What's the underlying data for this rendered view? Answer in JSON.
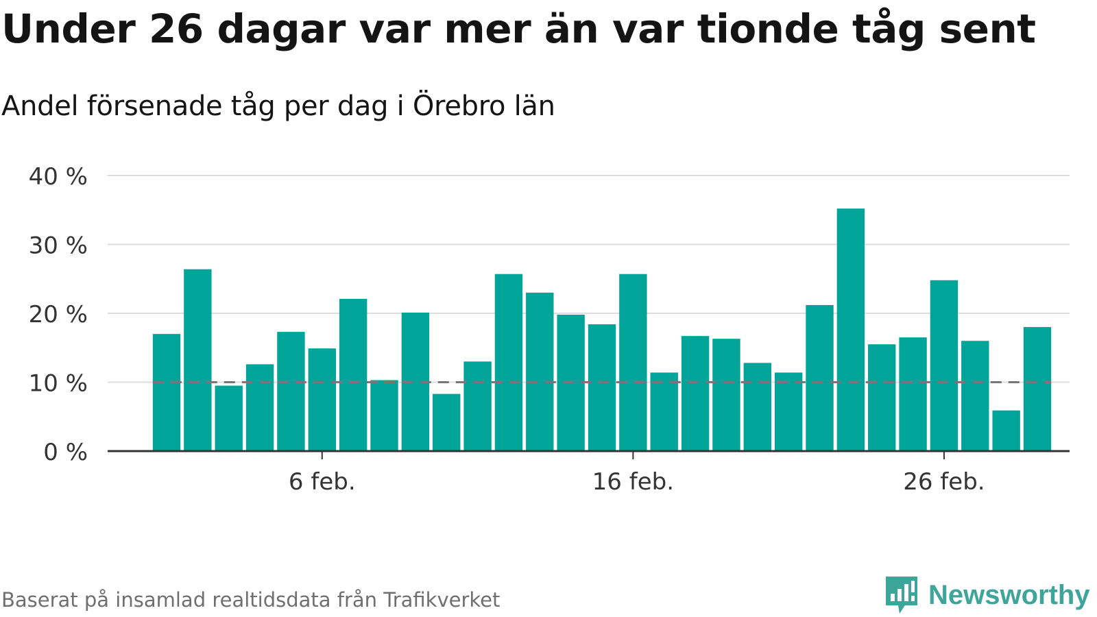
{
  "title": "Under 26 dagar var mer än var tionde tåg sent",
  "subtitle": "Andel försenade tåg per dag i Örebro län",
  "source": "Baserat på insamlad realtidsdata från Trafikverket",
  "logo": {
    "text": "Newsworthy",
    "icon": "newsworthy-logo-icon",
    "color": "#3ea59a"
  },
  "colors": {
    "bar": "#00a499",
    "grid": "#dddddd",
    "axis": "#333333",
    "reference": "#777777"
  },
  "chart_data": {
    "type": "bar",
    "x": [
      "1 feb.",
      "2 feb.",
      "3 feb.",
      "4 feb.",
      "5 feb.",
      "6 feb.",
      "7 feb.",
      "8 feb.",
      "9 feb.",
      "10 feb.",
      "11 feb.",
      "12 feb.",
      "13 feb.",
      "14 feb.",
      "15 feb.",
      "16 feb.",
      "17 feb.",
      "18 feb.",
      "19 feb.",
      "20 feb.",
      "21 feb.",
      "22 feb.",
      "23 feb.",
      "24 feb.",
      "25 feb.",
      "26 feb.",
      "27 feb.",
      "28 feb.",
      "29 feb."
    ],
    "values": [
      17.0,
      26.4,
      9.5,
      12.6,
      17.3,
      14.9,
      22.1,
      10.3,
      20.1,
      8.3,
      13.0,
      25.7,
      23.0,
      19.8,
      18.4,
      25.7,
      11.4,
      16.7,
      16.3,
      12.8,
      11.4,
      21.2,
      35.2,
      15.5,
      16.5,
      24.8,
      16.0,
      5.9,
      18.0
    ],
    "ylim": [
      0,
      40
    ],
    "yticks": [
      0,
      10,
      20,
      30,
      40
    ],
    "ytick_labels": [
      "0 %",
      "10 %",
      "20 %",
      "30 %",
      "40 %"
    ],
    "xtick_labels": [
      "6 feb.",
      "16 feb.",
      "26 feb."
    ],
    "reference_line": 10,
    "grid": true,
    "legend": "none"
  }
}
